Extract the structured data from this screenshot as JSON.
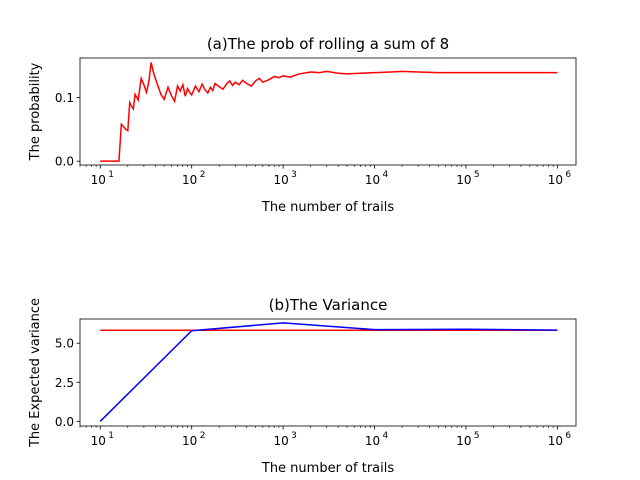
{
  "chart_data": [
    {
      "type": "line",
      "title": "(a)The prob of rolling a sum of 8",
      "xlabel": "The number of trails",
      "ylabel": "The probability",
      "xscale": "log",
      "xlim": [
        6,
        1600000
      ],
      "ylim": [
        -0.006,
        0.162
      ],
      "xticks": [
        {
          "value": 10,
          "base": "10",
          "exp": "1"
        },
        {
          "value": 100,
          "base": "10",
          "exp": "2"
        },
        {
          "value": 1000,
          "base": "10",
          "exp": "3"
        },
        {
          "value": 10000,
          "base": "10",
          "exp": "4"
        },
        {
          "value": 100000,
          "base": "10",
          "exp": "5"
        },
        {
          "value": 1000000,
          "base": "10",
          "exp": "6"
        }
      ],
      "yticks": [
        {
          "value": 0.0,
          "label": "0.0"
        },
        {
          "value": 0.1,
          "label": "0.1"
        }
      ],
      "grid": false,
      "series": [
        {
          "color": "#ff0000",
          "x": [
            10,
            11,
            12,
            13,
            14,
            15,
            16,
            17,
            18,
            19,
            20,
            21,
            22,
            23,
            24,
            26,
            28,
            30,
            32,
            34,
            36,
            38,
            40,
            43,
            46,
            50,
            55,
            60,
            65,
            70,
            75,
            80,
            85,
            90,
            95,
            100,
            110,
            120,
            130,
            140,
            150,
            160,
            170,
            180,
            200,
            220,
            240,
            260,
            280,
            300,
            330,
            360,
            400,
            450,
            500,
            550,
            600,
            700,
            800,
            900,
            1000,
            1200,
            1500,
            2000,
            2500,
            3000,
            4000,
            5000,
            7000,
            10000,
            15000,
            20000,
            30000,
            50000,
            100000,
            300000,
            1000000
          ],
          "y": [
            0,
            0,
            0,
            0,
            0,
            0,
            0,
            0.058,
            0.054,
            0.05,
            0.048,
            0.092,
            0.086,
            0.082,
            0.105,
            0.096,
            0.13,
            0.12,
            0.108,
            0.125,
            0.155,
            0.14,
            0.13,
            0.117,
            0.105,
            0.097,
            0.116,
            0.103,
            0.094,
            0.118,
            0.11,
            0.12,
            0.102,
            0.114,
            0.108,
            0.104,
            0.118,
            0.109,
            0.121,
            0.112,
            0.107,
            0.116,
            0.111,
            0.122,
            0.117,
            0.113,
            0.121,
            0.126,
            0.119,
            0.124,
            0.12,
            0.127,
            0.122,
            0.118,
            0.126,
            0.13,
            0.124,
            0.128,
            0.133,
            0.131,
            0.134,
            0.132,
            0.137,
            0.14,
            0.139,
            0.141,
            0.138,
            0.137,
            0.138,
            0.139,
            0.14,
            0.141,
            0.14,
            0.139,
            0.139,
            0.139,
            0.139
          ]
        }
      ]
    },
    {
      "type": "line",
      "title": "(b)The Variance",
      "xlabel": "The number of trails",
      "ylabel": "The Expected variance",
      "xscale": "log",
      "xlim": [
        6,
        1600000
      ],
      "ylim": [
        -0.3,
        6.55
      ],
      "xticks": [
        {
          "value": 10,
          "base": "10",
          "exp": "1"
        },
        {
          "value": 100,
          "base": "10",
          "exp": "2"
        },
        {
          "value": 1000,
          "base": "10",
          "exp": "3"
        },
        {
          "value": 10000,
          "base": "10",
          "exp": "4"
        },
        {
          "value": 100000,
          "base": "10",
          "exp": "5"
        },
        {
          "value": 1000000,
          "base": "10",
          "exp": "6"
        }
      ],
      "yticks": [
        {
          "value": 0.0,
          "label": "0.0"
        },
        {
          "value": 2.5,
          "label": "2.5"
        },
        {
          "value": 5.0,
          "label": "5.0"
        }
      ],
      "grid": false,
      "series": [
        {
          "color": "#ff0000",
          "x": [
            10,
            100,
            1000,
            10000,
            100000,
            1000000
          ],
          "y": [
            5.83,
            5.83,
            5.83,
            5.83,
            5.83,
            5.83
          ]
        },
        {
          "color": "#0000ff",
          "x": [
            10,
            100,
            1000,
            10000,
            100000,
            1000000
          ],
          "y": [
            0.0,
            5.8,
            6.3,
            5.87,
            5.89,
            5.84
          ]
        }
      ]
    }
  ]
}
